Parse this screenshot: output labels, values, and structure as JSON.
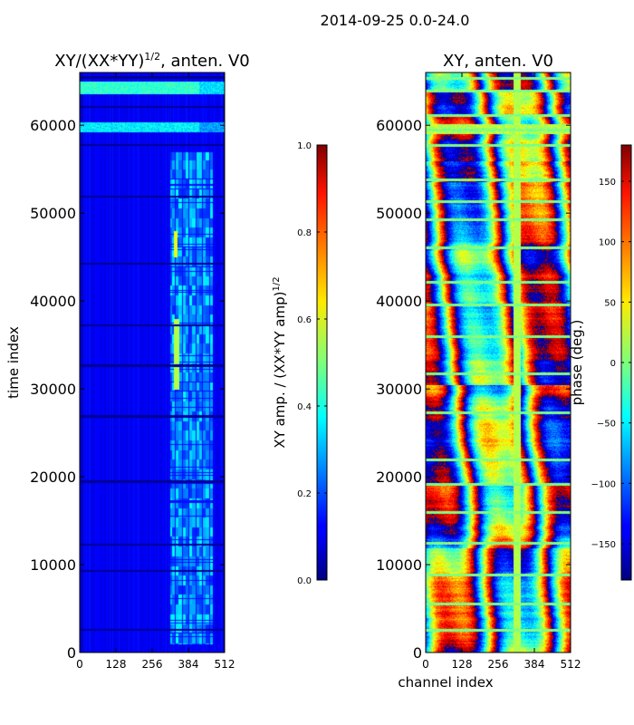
{
  "figure_title": "2014-09-25 0.0-24.0",
  "chart_data": [
    {
      "type": "heatmap",
      "title": "XY/(XX*YY)^1/2, anten. V0",
      "title_main": "XY/(XX*YY)",
      "title_exp": "1/2",
      "title_suffix": ", anten. V0",
      "xlabel": "",
      "ylabel": "time index",
      "xlim": [
        0,
        512
      ],
      "ylim": [
        0,
        66000
      ],
      "xticks": [
        0,
        128,
        256,
        384,
        512
      ],
      "xtick_labels": [
        "0",
        "128",
        "256",
        "384",
        "512"
      ],
      "yticks": [
        0,
        10000,
        20000,
        30000,
        40000,
        50000,
        60000
      ],
      "ytick_labels": [
        "0",
        "10000",
        "20000",
        "30000",
        "40000",
        "50000",
        "60000"
      ],
      "colorbar": {
        "label": "XY amp. / (XX*YY amp)^1/2",
        "label_main": "XY amp. / (XX*YY amp)",
        "label_exp": "1/2",
        "range": [
          0.0,
          1.0
        ],
        "ticks": [
          0.0,
          0.2,
          0.4,
          0.6,
          0.8,
          1.0
        ],
        "tick_labels": [
          "0.0",
          "0.2",
          "0.4",
          "0.6",
          "0.8",
          "1.0"
        ],
        "colormap": "jet"
      },
      "features": {
        "background_value": 0.12,
        "bright_channel_range": [
          320,
          470
        ],
        "bright_time_range": [
          1000,
          57000
        ],
        "bright_bands": [
          {
            "t0": 63600,
            "t1": 65000,
            "value": 0.42
          },
          {
            "t0": 59200,
            "t1": 60400,
            "value": 0.36
          }
        ],
        "dark_rows": [
          2600,
          9300,
          12300,
          19500,
          26900,
          32700,
          37300,
          44300,
          51900,
          57800,
          62100,
          65500
        ]
      }
    },
    {
      "type": "heatmap",
      "title": "XY, anten. V0",
      "xlabel": "channel index",
      "ylabel": "",
      "xlim": [
        0,
        512
      ],
      "ylim": [
        0,
        66000
      ],
      "xticks": [
        0,
        128,
        256,
        384,
        512
      ],
      "xtick_labels": [
        "0",
        "128",
        "256",
        "384",
        "512"
      ],
      "yticks": [
        0,
        10000,
        20000,
        30000,
        40000,
        50000,
        60000
      ],
      "ytick_labels": [
        "0",
        "10000",
        "20000",
        "30000",
        "40000",
        "50000",
        "60000"
      ],
      "colorbar": {
        "label": "phase (deg.)",
        "range": [
          -180,
          180
        ],
        "ticks": [
          -150,
          -100,
          -50,
          0,
          50,
          100,
          150
        ],
        "tick_labels": [
          "−150",
          "−100",
          "−50",
          "0",
          "50",
          "100",
          "150"
        ],
        "colormap": "jet"
      },
      "features": {
        "phase_wrap_period_channels": 150,
        "horizontal_flag_rows": [
          2600,
          5600,
          8900,
          12500,
          16000,
          19200,
          22000,
          27300,
          31800,
          36000,
          39600,
          42200,
          46100,
          49300,
          51400,
          53800,
          57800,
          59500,
          61200,
          63900,
          65400
        ]
      }
    }
  ]
}
